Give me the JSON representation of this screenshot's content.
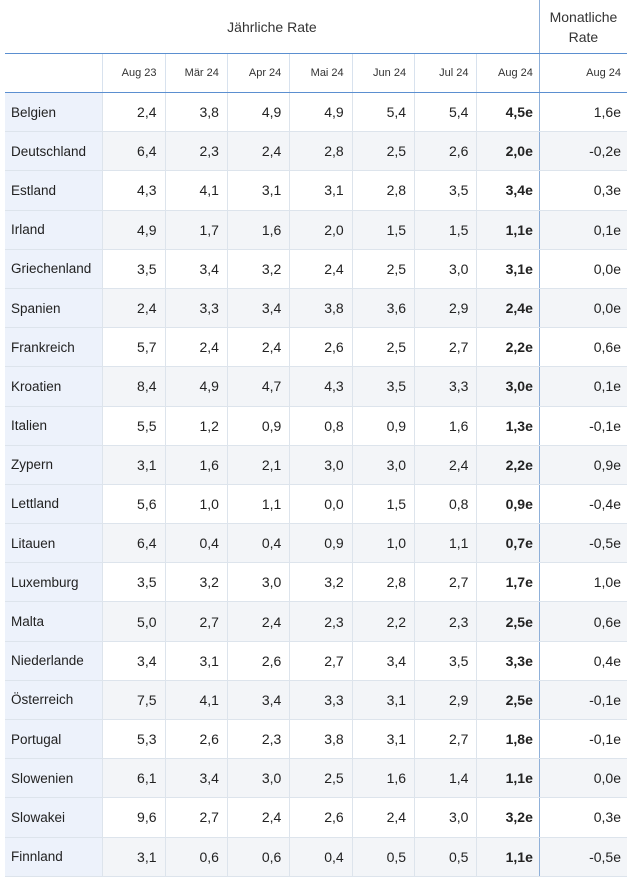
{
  "header": {
    "annual_label": "Jährliche Rate",
    "monthly_label_line1": "Monatliche",
    "monthly_label_line2": "Rate",
    "columns": [
      "Aug 23",
      "Mär 24",
      "Apr 24",
      "Mai 24",
      "Jun 24",
      "Jul 24",
      "Aug 24"
    ],
    "monthly_column": "Aug 24"
  },
  "rows": [
    {
      "country": "Belgien",
      "values": [
        "2,4",
        "3,8",
        "4,9",
        "4,9",
        "5,4",
        "5,4",
        "4,5e"
      ],
      "monthly": "1,6e"
    },
    {
      "country": "Deutschland",
      "values": [
        "6,4",
        "2,3",
        "2,4",
        "2,8",
        "2,5",
        "2,6",
        "2,0e"
      ],
      "monthly": "-0,2e"
    },
    {
      "country": "Estland",
      "values": [
        "4,3",
        "4,1",
        "3,1",
        "3,1",
        "2,8",
        "3,5",
        "3,4e"
      ],
      "monthly": "0,3e"
    },
    {
      "country": "Irland",
      "values": [
        "4,9",
        "1,7",
        "1,6",
        "2,0",
        "1,5",
        "1,5",
        "1,1e"
      ],
      "monthly": "0,1e"
    },
    {
      "country": "Griechenland",
      "values": [
        "3,5",
        "3,4",
        "3,2",
        "2,4",
        "2,5",
        "3,0",
        "3,1e"
      ],
      "monthly": "0,0e"
    },
    {
      "country": "Spanien",
      "values": [
        "2,4",
        "3,3",
        "3,4",
        "3,8",
        "3,6",
        "2,9",
        "2,4e"
      ],
      "monthly": "0,0e"
    },
    {
      "country": "Frankreich",
      "values": [
        "5,7",
        "2,4",
        "2,4",
        "2,6",
        "2,5",
        "2,7",
        "2,2e"
      ],
      "monthly": "0,6e"
    },
    {
      "country": "Kroatien",
      "values": [
        "8,4",
        "4,9",
        "4,7",
        "4,3",
        "3,5",
        "3,3",
        "3,0e"
      ],
      "monthly": "0,1e"
    },
    {
      "country": "Italien",
      "values": [
        "5,5",
        "1,2",
        "0,9",
        "0,8",
        "0,9",
        "1,6",
        "1,3e"
      ],
      "monthly": "-0,1e"
    },
    {
      "country": "Zypern",
      "values": [
        "3,1",
        "1,6",
        "2,1",
        "3,0",
        "3,0",
        "2,4",
        "2,2e"
      ],
      "monthly": "0,9e"
    },
    {
      "country": "Lettland",
      "values": [
        "5,6",
        "1,0",
        "1,1",
        "0,0",
        "1,5",
        "0,8",
        "0,9e"
      ],
      "monthly": "-0,4e"
    },
    {
      "country": "Litauen",
      "values": [
        "6,4",
        "0,4",
        "0,4",
        "0,9",
        "1,0",
        "1,1",
        "0,7e"
      ],
      "monthly": "-0,5e"
    },
    {
      "country": "Luxemburg",
      "values": [
        "3,5",
        "3,2",
        "3,0",
        "3,2",
        "2,8",
        "2,7",
        "1,7e"
      ],
      "monthly": "1,0e"
    },
    {
      "country": "Malta",
      "values": [
        "5,0",
        "2,7",
        "2,4",
        "2,3",
        "2,2",
        "2,3",
        "2,5e"
      ],
      "monthly": "0,6e"
    },
    {
      "country": "Niederlande",
      "values": [
        "3,4",
        "3,1",
        "2,6",
        "2,7",
        "3,4",
        "3,5",
        "3,3e"
      ],
      "monthly": "0,4e"
    },
    {
      "country": "Österreich",
      "values": [
        "7,5",
        "4,1",
        "3,4",
        "3,3",
        "3,1",
        "2,9",
        "2,5e"
      ],
      "monthly": "-0,1e"
    },
    {
      "country": "Portugal",
      "values": [
        "5,3",
        "2,6",
        "2,3",
        "3,8",
        "3,1",
        "2,7",
        "1,8e"
      ],
      "monthly": "-0,1e"
    },
    {
      "country": "Slowenien",
      "values": [
        "6,1",
        "3,4",
        "3,0",
        "2,5",
        "1,6",
        "1,4",
        "1,1e"
      ],
      "monthly": "0,0e"
    },
    {
      "country": "Slowakei",
      "values": [
        "9,6",
        "2,7",
        "2,4",
        "2,6",
        "2,4",
        "3,0",
        "3,2e"
      ],
      "monthly": "0,3e"
    },
    {
      "country": "Finnland",
      "values": [
        "3,1",
        "0,6",
        "0,6",
        "0,4",
        "0,5",
        "0,5",
        "1,1e"
      ],
      "monthly": "-0,5e"
    }
  ]
}
